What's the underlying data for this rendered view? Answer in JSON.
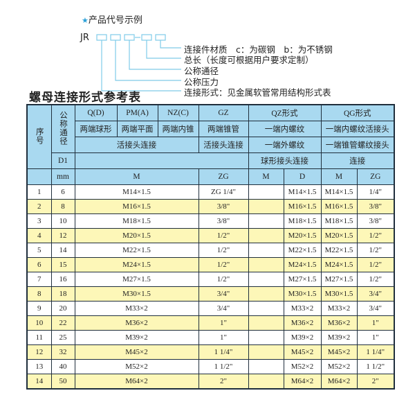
{
  "example": {
    "title": "产品代号示例",
    "prefix": "JR",
    "labels": [
      "连接件材质　c：为碳钢　b：为不锈钢",
      "总长（长度可根据用户要求定制）",
      "公称通径",
      "公称压力",
      "连接形式：见金属软管常用结构形式表"
    ]
  },
  "heading": "螺母连接形式参考表",
  "header": {
    "seq": "序号",
    "dn": "公称通径",
    "d1": "D1",
    "mm": "mm",
    "q": "Q(D)",
    "pm": "PM(A)",
    "nz": "NZ(C)",
    "gz": "GZ",
    "qz": "QZ形式",
    "qg": "QG形式",
    "q_desc": "两端球形",
    "pm_desc": "两端平面",
    "nz_desc": "两端内锥",
    "gz_desc": "两端锥管",
    "qz_desc": "一端内螺纹",
    "qg_desc": "一端内螺纹活接头",
    "union": "活接头连接",
    "gz_union": "活接头连接",
    "qz_desc2": "一端外螺纹",
    "qg_desc2": "一端锥管螺纹接头",
    "qz_desc3": "球形接头连接",
    "qg_desc3": "连接",
    "m": "M",
    "zg": "ZG",
    "qz_m": "M",
    "qz_d": "D",
    "qg_m": "M",
    "qg_zg": "ZG"
  },
  "rows": [
    {
      "no": "1",
      "dn": "6",
      "m": "M14×1.5",
      "zg": "ZG 1/4\"",
      "qz_m": "",
      "qz_d": "M14×1.5",
      "qg_m": "M14×1.5",
      "qg_zg": "1/4\""
    },
    {
      "no": "2",
      "dn": "8",
      "m": "M16×1.5",
      "zg": "3/8\"",
      "qz_m": "",
      "qz_d": "M16×1.5",
      "qg_m": "M16×1.5",
      "qg_zg": "3/8\""
    },
    {
      "no": "3",
      "dn": "10",
      "m": "M18×1.5",
      "zg": "3/8\"",
      "qz_m": "",
      "qz_d": "M18×1.5",
      "qg_m": "M18×1.5",
      "qg_zg": "3/8\""
    },
    {
      "no": "4",
      "dn": "12",
      "m": "M20×1.5",
      "zg": "1/2\"",
      "qz_m": "",
      "qz_d": "M20×1.5",
      "qg_m": "M20×1.5",
      "qg_zg": "1/2\""
    },
    {
      "no": "5",
      "dn": "14",
      "m": "M22×1.5",
      "zg": "1/2\"",
      "qz_m": "",
      "qz_d": "M22×1.5",
      "qg_m": "M22×1.5",
      "qg_zg": "1/2\""
    },
    {
      "no": "6",
      "dn": "15",
      "m": "M24×1.5",
      "zg": "1/2\"",
      "qz_m": "",
      "qz_d": "M24×1.5",
      "qg_m": "M24×1.5",
      "qg_zg": "1/2\""
    },
    {
      "no": "7",
      "dn": "16",
      "m": "M27×1.5",
      "zg": "1/2\"",
      "qz_m": "",
      "qz_d": "M27×1.5",
      "qg_m": "M27×1.5",
      "qg_zg": "1/2\""
    },
    {
      "no": "8",
      "dn": "18",
      "m": "M30×1.5",
      "zg": "3/4\"",
      "qz_m": "",
      "qz_d": "M30×1.5",
      "qg_m": "M30×1.5",
      "qg_zg": "3/4\""
    },
    {
      "no": "9",
      "dn": "20",
      "m": "M33×2",
      "zg": "3/4\"",
      "qz_m": "",
      "qz_d": "M33×2",
      "qg_m": "M33×2",
      "qg_zg": "3/4\""
    },
    {
      "no": "10",
      "dn": "22",
      "m": "M36×2",
      "zg": "1\"",
      "qz_m": "",
      "qz_d": "M36×2",
      "qg_m": "M36×2",
      "qg_zg": "1\""
    },
    {
      "no": "11",
      "dn": "25",
      "m": "M39×2",
      "zg": "1\"",
      "qz_m": "",
      "qz_d": "M39×2",
      "qg_m": "M39×2",
      "qg_zg": "1\""
    },
    {
      "no": "12",
      "dn": "32",
      "m": "M45×2",
      "zg": "1 1/4\"",
      "qz_m": "",
      "qz_d": "M45×2",
      "qg_m": "M45×2",
      "qg_zg": "1 1/4\""
    },
    {
      "no": "13",
      "dn": "40",
      "m": "M52×2",
      "zg": "1 1/2\"",
      "qz_m": "",
      "qz_d": "M52×2",
      "qg_m": "M52×2",
      "qg_zg": "1 1/2\""
    },
    {
      "no": "14",
      "dn": "50",
      "m": "M64×2",
      "zg": "2\"",
      "qz_m": "",
      "qz_d": "M64×2",
      "qg_m": "M64×2",
      "qg_zg": "2\""
    }
  ],
  "colors": {
    "header": "#a9d9f0",
    "row_alt": "#fdf7b8",
    "accent": "#2aa0d8",
    "border": "#1f2e3c"
  }
}
